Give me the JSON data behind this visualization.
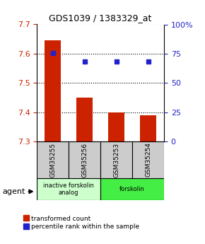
{
  "title": "GDS1039 / 1383329_at",
  "samples": [
    "GSM35255",
    "GSM35256",
    "GSM35253",
    "GSM35254"
  ],
  "red_values": [
    7.645,
    7.45,
    7.4,
    7.39
  ],
  "blue_values": [
    75.5,
    68,
    68,
    68
  ],
  "ylim_left": [
    7.3,
    7.7
  ],
  "ylim_right": [
    0,
    100
  ],
  "yticks_left": [
    7.3,
    7.4,
    7.5,
    7.6,
    7.7
  ],
  "yticks_right": [
    0,
    25,
    50,
    75,
    100
  ],
  "ytick_labels_right": [
    "0",
    "25",
    "50",
    "75",
    "100%"
  ],
  "groups": [
    {
      "label": "inactive forskolin\nanalog",
      "color": "#ccffcc",
      "samples": [
        0,
        1
      ]
    },
    {
      "label": "forskolin",
      "color": "#44ee44",
      "samples": [
        2,
        3
      ]
    }
  ],
  "bar_color": "#cc2200",
  "dot_color": "#2222cc",
  "grid_color": "#000000",
  "sample_box_color": "#cccccc",
  "legend_red_label": "transformed count",
  "legend_blue_label": "percentile rank within the sample",
  "agent_label": "agent"
}
